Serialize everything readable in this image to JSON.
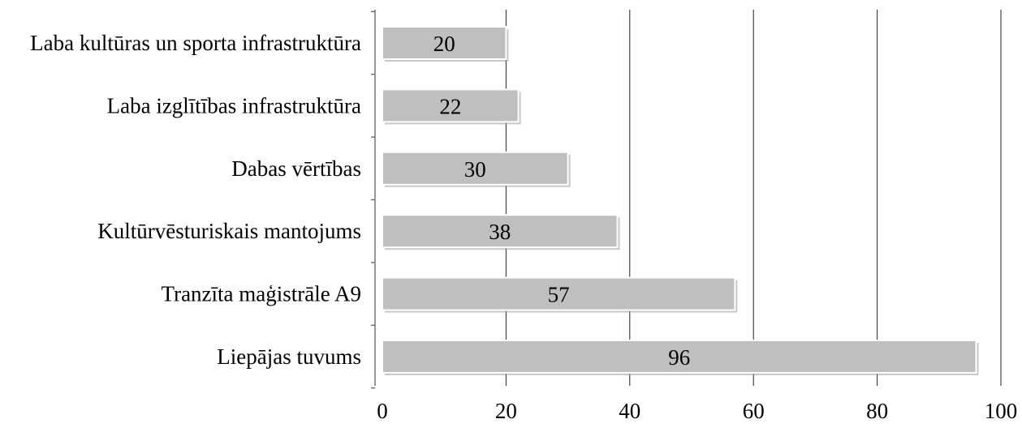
{
  "chart_data": {
    "type": "bar",
    "orientation": "horizontal",
    "title": "",
    "xlabel": "",
    "ylabel": "",
    "categories": [
      "Liepājas tuvums",
      "Tranzīta maģistrāle A9",
      "Kultūrvēsturiskais mantojums",
      "Dabas vērtības",
      "Laba izglītības infrastruktūra",
      "Laba kultūras un sporta infrastruktūra"
    ],
    "values": [
      96,
      57,
      38,
      30,
      22,
      20
    ],
    "data_labels": [
      "96",
      "57",
      "38",
      "30",
      "22",
      "20"
    ],
    "xlim": [
      0,
      100
    ],
    "xticks": [
      "0",
      "20",
      "40",
      "60",
      "80",
      "100"
    ],
    "grid": "vertical",
    "legend": "none",
    "colors": {
      "bar_fill": "#bfbfbf",
      "bar_border": "#ffffff",
      "grid": "#222222"
    }
  }
}
